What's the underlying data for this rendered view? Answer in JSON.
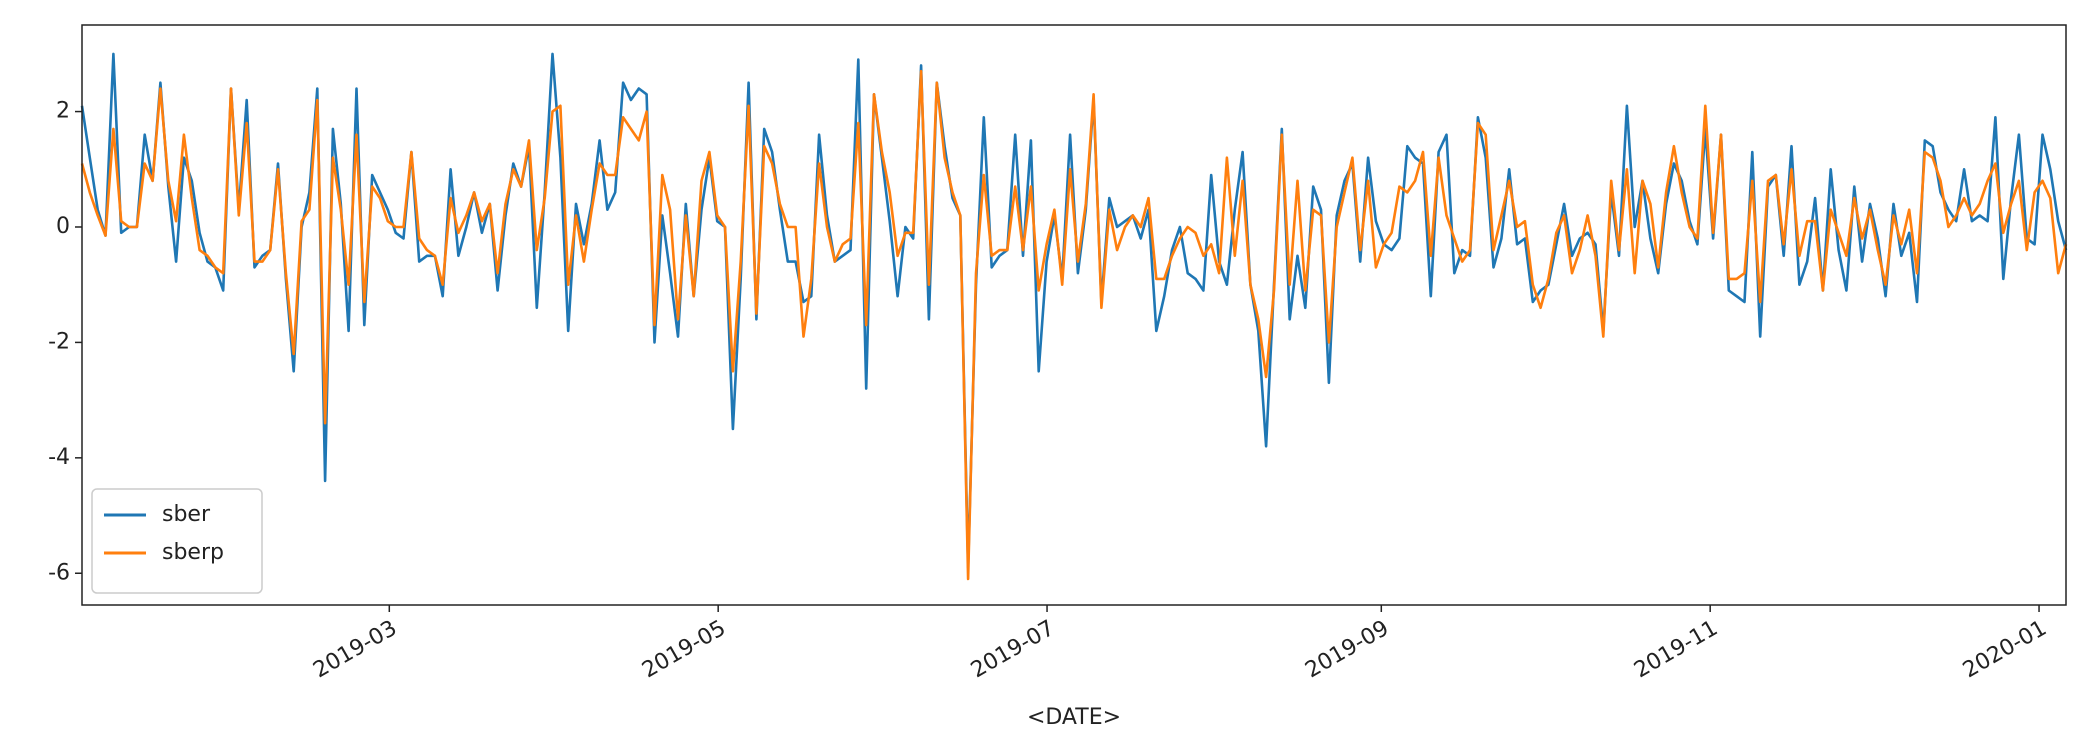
{
  "chart_data": {
    "type": "line",
    "xlabel": "<DATE>",
    "xlim": [
      "2019-01-03",
      "2020-01-06"
    ],
    "xticks": [
      "2019-03",
      "2019-05",
      "2019-07",
      "2019-09",
      "2019-11",
      "2020-01"
    ],
    "ylim": [
      -6.55,
      3.5
    ],
    "yticks": [
      -6,
      -4,
      -2,
      0,
      2
    ],
    "grid": false,
    "legend": "lower left",
    "series": [
      {
        "name": "sber",
        "color": "#1f77b4",
        "values": [
          2.1,
          1.2,
          0.3,
          -0.15,
          3.0,
          -0.1,
          0.0,
          0.0,
          1.6,
          0.8,
          2.5,
          0.7,
          -0.6,
          1.2,
          0.8,
          -0.1,
          -0.6,
          -0.7,
          -1.1,
          2.4,
          0.3,
          2.2,
          -0.7,
          -0.5,
          -0.4,
          1.1,
          -0.9,
          -2.5,
          0.0,
          0.6,
          2.4,
          -4.4,
          1.7,
          0.4,
          -1.8,
          2.4,
          -1.7,
          0.9,
          0.6,
          0.3,
          -0.1,
          -0.2,
          1.3,
          -0.6,
          -0.5,
          -0.5,
          -1.2,
          1.0,
          -0.5,
          0.0,
          0.6,
          -0.1,
          0.4,
          -1.1,
          0.2,
          1.1,
          0.7,
          1.4,
          -1.4,
          0.6,
          3.0,
          1.2,
          -1.8,
          0.4,
          -0.3,
          0.4,
          1.5,
          0.3,
          0.6,
          2.5,
          2.2,
          2.4,
          2.3,
          -2.0,
          0.2,
          -0.8,
          -1.9,
          0.4,
          -1.2,
          0.3,
          1.2,
          0.1,
          0.0,
          -3.5,
          -0.9,
          2.5,
          -1.6,
          1.7,
          1.3,
          0.3,
          -0.6,
          -0.6,
          -1.3,
          -1.2,
          1.6,
          0.2,
          -0.6,
          -0.5,
          -0.4,
          2.9,
          -2.8,
          2.3,
          1.2,
          0.1,
          -1.2,
          0.0,
          -0.2,
          2.8,
          -1.6,
          2.5,
          1.4,
          0.5,
          0.2,
          -5.9,
          -1.0,
          1.9,
          -0.7,
          -0.5,
          -0.4,
          1.6,
          -0.5,
          1.5,
          -2.5,
          -0.6,
          0.2,
          -0.9,
          1.6,
          -0.8,
          0.3,
          2.2,
          -1.3,
          0.5,
          0.0,
          0.1,
          0.2,
          -0.2,
          0.3,
          -1.8,
          -1.2,
          -0.4,
          0.0,
          -0.8,
          -0.9,
          -1.1,
          0.9,
          -0.6,
          -1.0,
          0.3,
          1.3,
          -1.0,
          -1.8,
          -3.8,
          -1.0,
          1.7,
          -1.6,
          -0.5,
          -1.4,
          0.7,
          0.3,
          -2.7,
          0.2,
          0.8,
          1.1,
          -0.6,
          1.2,
          0.1,
          -0.3,
          -0.4,
          -0.2,
          1.4,
          1.2,
          1.1,
          -1.2,
          1.3,
          1.6,
          -0.8,
          -0.4,
          -0.5,
          1.9,
          1.2,
          -0.7,
          -0.2,
          1.0,
          -0.3,
          -0.2,
          -1.3,
          -1.1,
          -1.0,
          -0.3,
          0.4,
          -0.5,
          -0.2,
          -0.1,
          -0.3,
          -1.8,
          0.6,
          -0.5,
          2.1,
          0.0,
          0.8,
          -0.2,
          -0.8,
          0.4,
          1.1,
          0.8,
          0.1,
          -0.3,
          1.7,
          -0.2,
          1.6,
          -1.1,
          -1.2,
          -1.3,
          1.3,
          -1.9,
          0.7,
          0.9,
          -0.5,
          1.4,
          -1.0,
          -0.6,
          0.5,
          -1.1,
          1.0,
          -0.4,
          -1.1,
          0.7,
          -0.6,
          0.4,
          -0.2,
          -1.2,
          0.4,
          -0.5,
          -0.1,
          -1.3,
          1.5,
          1.4,
          0.6,
          0.3,
          0.1,
          1.0,
          0.1,
          0.2,
          0.1,
          1.9,
          -0.9,
          0.5,
          1.6,
          -0.2,
          -0.3,
          1.6,
          1.0,
          0.1,
          -0.4
        ]
      },
      {
        "name": "sberp",
        "color": "#ff7f0e",
        "values": [
          1.1,
          0.6,
          0.2,
          -0.15,
          1.7,
          0.1,
          0.0,
          0.0,
          1.1,
          0.8,
          2.4,
          0.8,
          0.1,
          1.6,
          0.5,
          -0.4,
          -0.5,
          -0.7,
          -0.8,
          2.4,
          0.2,
          1.8,
          -0.6,
          -0.6,
          -0.4,
          1.0,
          -0.8,
          -2.2,
          0.1,
          0.3,
          2.2,
          -3.4,
          1.2,
          0.3,
          -1.0,
          1.6,
          -1.3,
          0.7,
          0.5,
          0.1,
          0.0,
          0.0,
          1.3,
          -0.2,
          -0.4,
          -0.5,
          -1.0,
          0.5,
          -0.1,
          0.2,
          0.6,
          0.1,
          0.4,
          -0.8,
          0.4,
          1.0,
          0.7,
          1.5,
          -0.4,
          0.5,
          2.0,
          2.1,
          -1.0,
          0.2,
          -0.6,
          0.3,
          1.1,
          0.9,
          0.9,
          1.9,
          1.7,
          1.5,
          2.0,
          -1.7,
          0.9,
          0.3,
          -1.6,
          0.2,
          -1.2,
          0.8,
          1.3,
          0.2,
          0.0,
          -2.5,
          -0.6,
          2.1,
          -1.5,
          1.4,
          1.1,
          0.4,
          0.0,
          0.0,
          -1.9,
          -0.9,
          1.1,
          0.0,
          -0.6,
          -0.3,
          -0.2,
          1.8,
          -1.7,
          2.3,
          1.3,
          0.6,
          -0.5,
          -0.1,
          -0.1,
          2.7,
          -1.0,
          2.5,
          1.2,
          0.6,
          0.2,
          -6.1,
          -0.8,
          0.9,
          -0.5,
          -0.4,
          -0.4,
          0.7,
          -0.4,
          0.7,
          -1.1,
          -0.3,
          0.3,
          -1.0,
          1.0,
          -0.6,
          0.4,
          2.3,
          -1.4,
          0.3,
          -0.4,
          0.0,
          0.2,
          0.0,
          0.5,
          -0.9,
          -0.9,
          -0.5,
          -0.2,
          0.0,
          -0.1,
          -0.5,
          -0.3,
          -0.8,
          1.2,
          -0.5,
          0.8,
          -1.0,
          -1.6,
          -2.6,
          -1.1,
          1.6,
          -1.0,
          0.8,
          -1.1,
          0.3,
          0.2,
          -2.0,
          0.0,
          0.6,
          1.2,
          -0.4,
          0.8,
          -0.7,
          -0.3,
          -0.1,
          0.7,
          0.6,
          0.8,
          1.3,
          -0.5,
          1.2,
          0.2,
          -0.2,
          -0.6,
          -0.4,
          1.8,
          1.6,
          -0.4,
          0.2,
          0.8,
          0.0,
          0.1,
          -1.0,
          -1.4,
          -0.9,
          -0.1,
          0.2,
          -0.8,
          -0.4,
          0.2,
          -0.5,
          -1.9,
          0.8,
          -0.4,
          1.0,
          -0.8,
          0.8,
          0.4,
          -0.7,
          0.6,
          1.4,
          0.6,
          0.0,
          -0.2,
          2.1,
          -0.1,
          1.6,
          -0.9,
          -0.9,
          -0.8,
          0.8,
          -1.3,
          0.8,
          0.9,
          -0.3,
          1.0,
          -0.5,
          0.1,
          0.1,
          -1.1,
          0.3,
          -0.1,
          -0.5,
          0.5,
          -0.2,
          0.3,
          -0.4,
          -1.0,
          0.2,
          -0.3,
          0.3,
          -0.8,
          1.3,
          1.2,
          0.8,
          0.0,
          0.2,
          0.5,
          0.2,
          0.4,
          0.8,
          1.1,
          -0.1,
          0.4,
          0.8,
          -0.4,
          0.6,
          0.8,
          0.5,
          -0.8,
          -0.3
        ]
      }
    ]
  }
}
